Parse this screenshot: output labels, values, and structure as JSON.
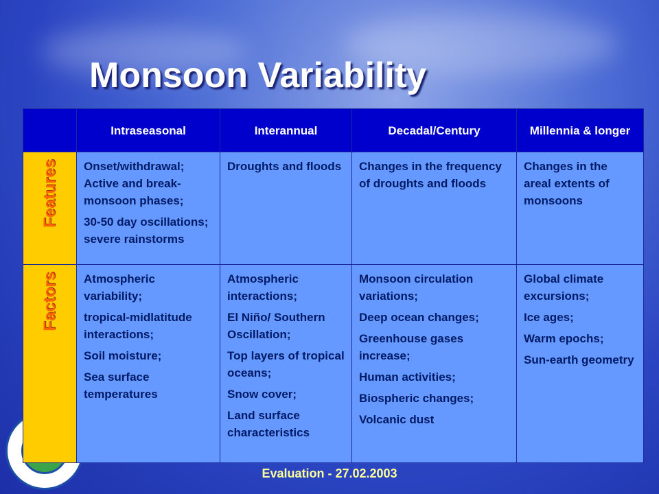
{
  "title": "Monsoon Variability",
  "table": {
    "header": [
      "Intraseasonal",
      "Interannual",
      "Decadal/Century",
      "Millennia & longer"
    ],
    "rows": [
      {
        "label": "Features",
        "cells": [
          [
            "Onset/withdrawal; Active and break-monsoon phases;",
            "30-50 day oscillations; severe rainstorms"
          ],
          [
            "Droughts and floods"
          ],
          [
            "Changes in the frequency of droughts and floods"
          ],
          [
            "Changes in the areal extents of monsoons"
          ]
        ]
      },
      {
        "label": "Factors",
        "cells": [
          [
            "Atmospheric variability;",
            "tropical-midlatitude interactions;",
            "Soil moisture;",
            "Sea surface temperatures"
          ],
          [
            "Atmospheric interactions;",
            "El Niño/ Southern Oscillation;",
            "Top layers of tropical oceans;",
            "Snow cover;",
            "Land surface characteristics"
          ],
          [
            "Monsoon circulation variations;",
            "Deep ocean changes;",
            "Greenhouse gases increase;",
            "Human activities;",
            "Biospheric changes;",
            "Volcanic dust"
          ],
          [
            "Global climate excursions;",
            "Ice ages;",
            "Warm epochs;",
            "Sun-earth geometry"
          ]
        ]
      }
    ]
  },
  "footer": "Evaluation - 27.02.2003"
}
